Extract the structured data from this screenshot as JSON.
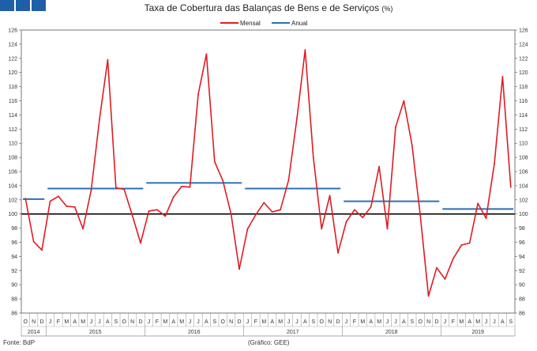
{
  "source_left": "Fonte: BdP",
  "source_center": "(Gráfico: GEE)",
  "colors": {
    "mensal": "#e01b22",
    "anual": "#2d6fb8",
    "reference": "#000000",
    "logo": "#1f5fa8"
  },
  "chart_data": {
    "type": "line",
    "title": "Taxa de Cobertura das Balanças de Bens e de Serviços",
    "title_unit": "(%)",
    "ylim": [
      86,
      126
    ],
    "yticks": [
      86,
      88,
      90,
      92,
      94,
      96,
      98,
      100,
      102,
      104,
      106,
      108,
      110,
      112,
      114,
      116,
      118,
      120,
      122,
      124,
      126
    ],
    "reference_line": 100,
    "legend_position": "top-center",
    "month_letters": [
      "O",
      "N",
      "D",
      "J",
      "F",
      "M",
      "A",
      "M",
      "J",
      "J",
      "A",
      "S",
      "O",
      "N",
      "D",
      "J",
      "F",
      "M",
      "A",
      "M",
      "J",
      "J",
      "A",
      "S",
      "O",
      "N",
      "D",
      "J",
      "F",
      "M",
      "A",
      "M",
      "J",
      "J",
      "A",
      "S",
      "O",
      "N",
      "D",
      "J",
      "F",
      "M",
      "A",
      "M",
      "J",
      "J",
      "A",
      "S",
      "O",
      "N",
      "D",
      "J",
      "F",
      "M",
      "A",
      "M",
      "J",
      "J",
      "A",
      "S"
    ],
    "years": [
      {
        "label": "2014",
        "start": 0,
        "end": 2
      },
      {
        "label": "2015",
        "start": 3,
        "end": 14
      },
      {
        "label": "2016",
        "start": 15,
        "end": 26
      },
      {
        "label": "2017",
        "start": 27,
        "end": 38
      },
      {
        "label": "2018",
        "start": 39,
        "end": 50
      },
      {
        "label": "2019",
        "start": 51,
        "end": 59
      }
    ],
    "series": [
      {
        "name": "Mensal",
        "values": [
          102.2,
          96.1,
          94.9,
          101.8,
          102.5,
          101.1,
          101.0,
          97.9,
          103.4,
          113.4,
          121.8,
          103.7,
          103.5,
          99.8,
          95.9,
          100.4,
          100.6,
          99.7,
          102.4,
          103.9,
          103.8,
          116.9,
          122.6,
          107.4,
          104.7,
          100.0,
          92.2,
          97.9,
          99.9,
          101.6,
          100.3,
          100.6,
          104.8,
          113.5,
          123.2,
          108.0,
          97.9,
          102.6,
          94.5,
          98.9,
          100.6,
          99.5,
          101.0,
          106.7,
          97.9,
          112.3,
          116.0,
          109.7,
          99.8,
          88.4,
          92.4,
          90.8,
          93.7,
          95.6,
          95.9,
          101.5,
          99.4,
          107.1,
          119.4,
          103.8
        ]
      },
      {
        "name": "Anual",
        "segments": [
          {
            "start": 0,
            "end": 2,
            "value": 102.1
          },
          {
            "start": 3,
            "end": 14,
            "value": 103.6
          },
          {
            "start": 15,
            "end": 26,
            "value": 104.4
          },
          {
            "start": 27,
            "end": 38,
            "value": 103.6
          },
          {
            "start": 39,
            "end": 50,
            "value": 101.8
          },
          {
            "start": 51,
            "end": 59,
            "value": 100.7
          }
        ]
      }
    ]
  }
}
